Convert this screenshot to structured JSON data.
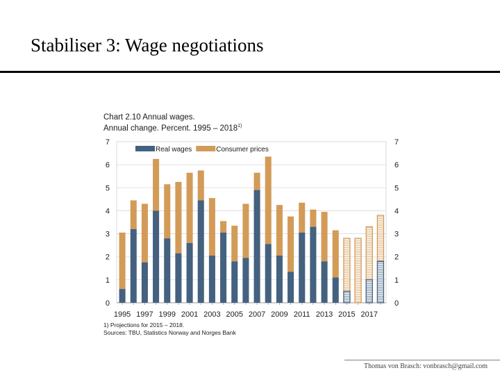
{
  "slide": {
    "title": "Stabiliser 3: Wage negotiations",
    "footer": "Thomas von Brasch: vonbrasch@gmail.com"
  },
  "chart_data": {
    "type": "bar",
    "stacked": true,
    "title": "Chart 2.10 Annual wages.",
    "subtitle": "Annual change. Percent. 1995 – 2018",
    "subtitle_note": "1)",
    "categories": [
      "1995",
      "1996",
      "1997",
      "1998",
      "1999",
      "2000",
      "2001",
      "2002",
      "2003",
      "2004",
      "2005",
      "2006",
      "2007",
      "2008",
      "2009",
      "2010",
      "2011",
      "2012",
      "2013",
      "2014",
      "2015",
      "2016",
      "2017",
      "2018"
    ],
    "x_tick_labels": [
      "1995",
      "1997",
      "1999",
      "2001",
      "2003",
      "2005",
      "2007",
      "2009",
      "2011",
      "2013",
      "2015",
      "2017"
    ],
    "series": [
      {
        "name": "Real wages",
        "color": "#44617f",
        "values": [
          0.6,
          3.2,
          1.75,
          4.0,
          2.8,
          2.15,
          2.6,
          4.45,
          2.05,
          3.05,
          1.8,
          1.95,
          4.9,
          2.55,
          2.05,
          1.35,
          3.05,
          3.3,
          1.8,
          1.1,
          0.5,
          0.0,
          1.0,
          1.8
        ]
      },
      {
        "name": "Consumer prices",
        "color": "#d39b58",
        "values": [
          2.45,
          1.25,
          2.55,
          2.25,
          2.35,
          3.1,
          3.05,
          1.3,
          2.5,
          0.5,
          1.55,
          2.35,
          0.75,
          3.8,
          2.2,
          2.4,
          1.3,
          0.75,
          2.15,
          2.05,
          2.3,
          2.8,
          2.3,
          2.0
        ]
      }
    ],
    "projection_start": "2015",
    "ylim": [
      0,
      7
    ],
    "yticks": [
      0,
      1,
      2,
      3,
      4,
      5,
      6,
      7
    ],
    "grid": true,
    "legend_position": "top-left",
    "footnotes": [
      "1) Projections for 2015 – 2018.",
      "Sources: TBU, Statistics Norway and Norges Bank"
    ]
  }
}
